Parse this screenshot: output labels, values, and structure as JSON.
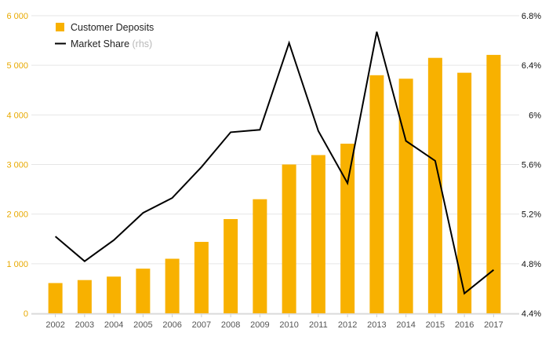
{
  "chart_data": {
    "type": "bar",
    "categories": [
      "2002",
      "2003",
      "2004",
      "2005",
      "2006",
      "2007",
      "2008",
      "2009",
      "2010",
      "2011",
      "2012",
      "2013",
      "2014",
      "2015",
      "2016",
      "2017"
    ],
    "series": [
      {
        "name": "Customer Deposits",
        "type": "bar",
        "axis": "left",
        "color": "#f8b100",
        "values": [
          610,
          670,
          740,
          900,
          1100,
          1440,
          1900,
          2300,
          3000,
          3190,
          3420,
          4800,
          4730,
          5150,
          4850,
          5210
        ]
      },
      {
        "name": "Market Share",
        "name_suffix": "(rhs)",
        "type": "line",
        "axis": "right",
        "color": "#000000",
        "values": [
          5.02,
          4.82,
          4.99,
          5.21,
          5.33,
          5.58,
          5.86,
          5.88,
          6.58,
          5.87,
          5.45,
          6.67,
          5.79,
          5.63,
          4.56,
          4.75
        ]
      }
    ],
    "y_left": {
      "lim": [
        0,
        6000
      ],
      "ticks": [
        0,
        1000,
        2000,
        3000,
        4000,
        5000,
        6000
      ],
      "tick_labels": [
        "0",
        "1 000",
        "2 000",
        "3 000",
        "4 000",
        "5 000",
        "6 000"
      ],
      "color": "#e8a900"
    },
    "y_right": {
      "lim": [
        4.4,
        6.8
      ],
      "ticks": [
        4.4,
        4.8,
        5.2,
        5.6,
        6.0,
        6.4,
        6.8
      ],
      "tick_labels": [
        "4.4%",
        "4.8%",
        "5.2%",
        "5.6%",
        "6%",
        "6.4%",
        "6.8%"
      ]
    },
    "grid": true,
    "legend_position": "top-left"
  }
}
